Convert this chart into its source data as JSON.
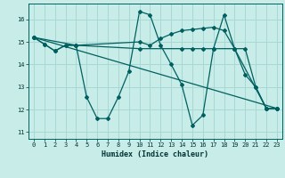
{
  "xlabel": "Humidex (Indice chaleur)",
  "bg_color": "#c8ece8",
  "grid_color": "#a8d8d4",
  "line_color": "#006060",
  "xlim": [
    -0.5,
    23.5
  ],
  "ylim": [
    10.7,
    16.7
  ],
  "xticks": [
    0,
    1,
    2,
    3,
    4,
    5,
    6,
    7,
    8,
    9,
    10,
    11,
    12,
    13,
    14,
    15,
    16,
    17,
    18,
    19,
    20,
    21,
    22,
    23
  ],
  "yticks": [
    11,
    12,
    13,
    14,
    15,
    16
  ],
  "lines": [
    {
      "x": [
        0,
        1,
        2,
        3,
        4,
        5,
        6,
        7,
        8,
        9,
        10,
        11,
        12,
        13,
        14,
        15,
        16,
        17,
        18,
        19,
        20,
        21,
        22,
        23
      ],
      "y": [
        15.2,
        14.9,
        14.6,
        14.85,
        14.85,
        12.55,
        11.6,
        11.6,
        12.55,
        13.7,
        16.35,
        16.2,
        14.85,
        14.0,
        13.1,
        11.3,
        11.75,
        14.7,
        16.2,
        14.7,
        13.55,
        13.0,
        12.05,
        12.05
      ]
    },
    {
      "x": [
        0,
        1,
        2,
        3,
        4,
        10,
        11,
        12,
        13,
        14,
        15,
        16,
        17,
        18,
        19,
        20,
        21,
        22,
        23
      ],
      "y": [
        15.2,
        14.9,
        14.6,
        14.85,
        14.85,
        15.0,
        14.85,
        15.15,
        15.35,
        15.5,
        15.55,
        15.6,
        15.65,
        15.5,
        14.7,
        14.7,
        13.0,
        12.05,
        12.05
      ]
    },
    {
      "x": [
        0,
        23
      ],
      "y": [
        15.2,
        12.05
      ]
    },
    {
      "x": [
        0,
        4,
        10,
        14,
        15,
        16,
        17,
        19,
        22,
        23
      ],
      "y": [
        15.2,
        14.85,
        14.7,
        14.7,
        14.7,
        14.7,
        14.7,
        14.7,
        12.05,
        12.05
      ]
    }
  ]
}
